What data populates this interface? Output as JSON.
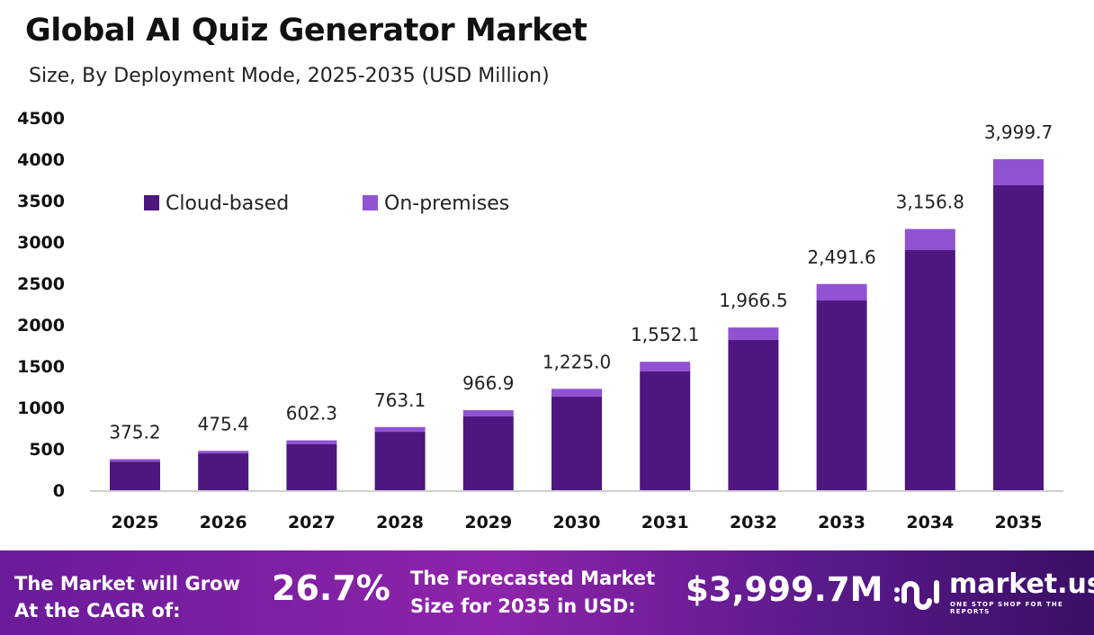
{
  "chart_data": {
    "type": "bar",
    "stacked": true,
    "title": "Global AI Quiz Generator Market",
    "subtitle": "Size, By Deployment Mode, 2025-2035 (USD Million)",
    "categories": [
      "2025",
      "2026",
      "2027",
      "2028",
      "2029",
      "2030",
      "2031",
      "2032",
      "2033",
      "2034",
      "2035"
    ],
    "series": [
      {
        "name": "Cloud-based",
        "color": "#4E1780",
        "values": [
          346,
          445,
          555,
          706,
          891,
          1130,
          1435,
          1815,
          2293,
          2902,
          3685
        ]
      },
      {
        "name": "On-premises",
        "color": "#9152D2",
        "values": [
          29.2,
          30.4,
          47.3,
          57.1,
          75.9,
          95.0,
          117.1,
          151.5,
          198.6,
          254.8,
          314.7
        ]
      }
    ],
    "totals": [
      "375.2",
      "475.4",
      "602.3",
      "763.1",
      "966.9",
      "1,225.0",
      "1,552.1",
      "1,966.5",
      "2,491.6",
      "3,156.8",
      "3,999.7"
    ],
    "yticks": [
      "0",
      "500",
      "1000",
      "1500",
      "2000",
      "2500",
      "3000",
      "3500",
      "4000",
      "4500"
    ],
    "ylim": [
      0,
      4500
    ],
    "grid": false,
    "legend": "top-left"
  },
  "footer": {
    "cagr_text": "The Market will Grow At the CAGR of:",
    "cagr_value": "26.7%",
    "forecast_text": "The Forecasted Market Size for 2035 in USD:",
    "forecast_value": "$3,999.7M",
    "brand": "market.us",
    "tagline": "ONE STOP SHOP FOR THE REPORTS"
  }
}
